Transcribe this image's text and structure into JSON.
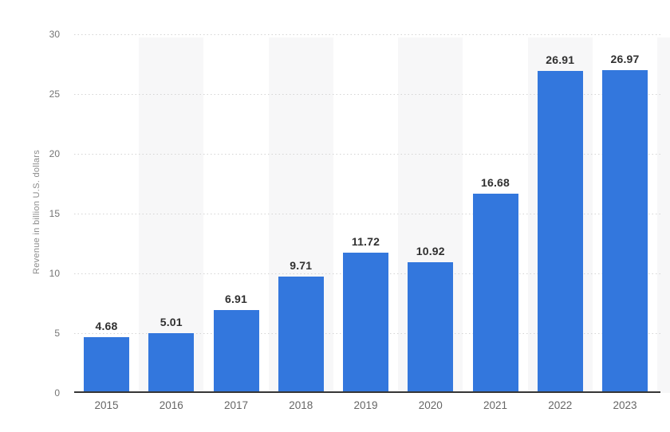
{
  "chart_data": {
    "type": "bar",
    "title": "",
    "categories": [
      "2015",
      "2016",
      "2017",
      "2018",
      "2019",
      "2020",
      "2021",
      "2022",
      "2023"
    ],
    "values": [
      4.68,
      5.01,
      6.91,
      9.71,
      11.72,
      10.92,
      16.68,
      26.91,
      26.97
    ],
    "value_labels": [
      "4.68",
      "5.01",
      "6.91",
      "9.71",
      "11.72",
      "10.92",
      "16.68",
      "26.91",
      "26.97"
    ],
    "xlabel": "",
    "ylabel": "Revenue in billion U.S. dollars",
    "ylim": [
      0,
      30
    ],
    "yticks": [
      0,
      5,
      10,
      15,
      20,
      25,
      30
    ],
    "grid": "horizontal-dotted",
    "legend": "none",
    "background_banding": "alternating vertical stripes behind even-year columns",
    "colors": {
      "bar": "#3377dd",
      "grid": "#d4d4d4",
      "axis": "#363636",
      "stripe": "#f7f7f8",
      "value_label": "#303030",
      "tick": "#757575",
      "year_label": "#666666",
      "axis_title": "#8c8c8c",
      "background": "#ffffff"
    }
  }
}
